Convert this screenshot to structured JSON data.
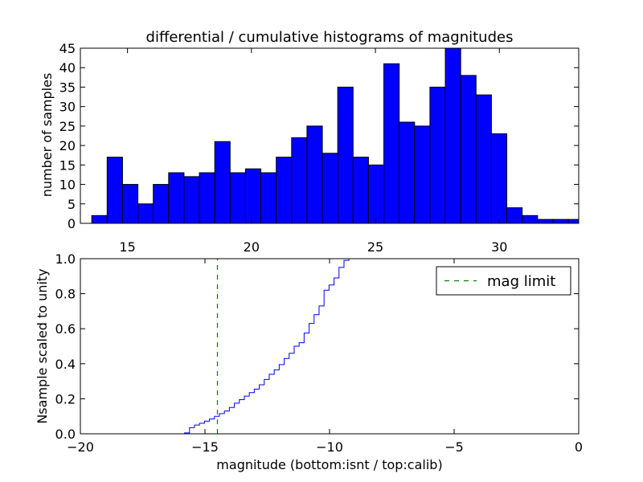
{
  "chart_data": [
    {
      "type": "bar",
      "title": "differential / cumulative histograms of magnitudes",
      "ylabel": "number of samples",
      "xlabel": "",
      "xlim": [
        13.1,
        33.2
      ],
      "ylim": [
        0,
        45
      ],
      "xticks": [
        15,
        20,
        25,
        30
      ],
      "yticks": [
        0,
        5,
        10,
        15,
        20,
        25,
        30,
        35,
        40,
        45
      ],
      "bin_edges": [
        13.56,
        14.18,
        14.8,
        15.42,
        16.04,
        16.66,
        17.28,
        17.9,
        18.52,
        19.14,
        19.76,
        20.38,
        21.0,
        21.62,
        22.24,
        22.86,
        23.48,
        24.1,
        24.72,
        25.34,
        25.96,
        26.58,
        27.2,
        27.82,
        28.44,
        29.06,
        29.68,
        30.3,
        30.92,
        31.54,
        32.16,
        32.78,
        33.2
      ],
      "values": [
        2,
        17,
        10,
        5,
        10,
        13,
        12,
        13,
        21,
        13,
        14,
        13,
        17,
        22,
        25,
        18,
        35,
        17,
        15,
        41,
        26,
        25,
        35,
        45,
        38,
        33,
        23,
        4,
        2,
        1,
        1,
        1
      ],
      "bar_color": "#0000ff",
      "edge_color": "#000000",
      "grid": false
    },
    {
      "type": "line",
      "title": "",
      "ylabel": "Nsample scaled to unity",
      "xlabel": "magnitude (bottom:isnt / top:calib)",
      "xlim": [
        -20,
        0
      ],
      "ylim": [
        0,
        1
      ],
      "xticks": [
        -20,
        -15,
        -10,
        -5,
        0
      ],
      "yticks": [
        0.0,
        0.2,
        0.4,
        0.6,
        0.8,
        1.0
      ],
      "ytick_labels": [
        "0.0",
        "0.2",
        "0.4",
        "0.6",
        "0.8",
        "1.0"
      ],
      "series": [
        {
          "name": "",
          "style": "steps",
          "color": "#0000ff",
          "x": [
            -20,
            -15.82,
            -15.62,
            -15.42,
            -15.22,
            -15.02,
            -14.82,
            -14.62,
            -14.42,
            -14.22,
            -14.02,
            -13.82,
            -13.62,
            -13.42,
            -13.22,
            -13.02,
            -12.82,
            -12.62,
            -12.42,
            -12.22,
            -12.02,
            -11.82,
            -11.62,
            -11.42,
            -11.22,
            -11.02,
            -10.82,
            -10.62,
            -10.42,
            -10.22,
            -10.02,
            -9.82,
            -9.62,
            -9.42,
            -9.22,
            -9.02,
            -8.82,
            -8.62,
            0
          ],
          "y": [
            0,
            0.005,
            0.035,
            0.05,
            0.06,
            0.072,
            0.085,
            0.1,
            0.115,
            0.13,
            0.15,
            0.175,
            0.195,
            0.215,
            0.235,
            0.255,
            0.28,
            0.31,
            0.34,
            0.365,
            0.395,
            0.43,
            0.46,
            0.5,
            0.52,
            0.575,
            0.63,
            0.68,
            0.73,
            0.82,
            0.85,
            0.89,
            0.95,
            0.99,
            1.0,
            1.0,
            1.0,
            1.0,
            1.0
          ]
        },
        {
          "name": "mag limit",
          "style": "dashed-vertical",
          "color": "#008000",
          "x": [
            -14.5,
            -14.5
          ],
          "y": [
            0,
            1
          ]
        }
      ],
      "legend_position": "top-right",
      "grid": false
    }
  ]
}
